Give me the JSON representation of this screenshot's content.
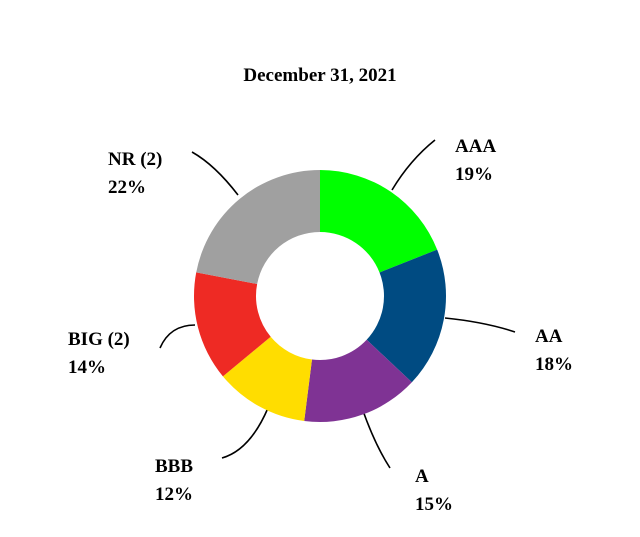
{
  "chart_data": {
    "type": "pie",
    "title": "December 31, 2021",
    "categories": [
      "AAA",
      "AA",
      "A",
      "BBB",
      "BIG (2)",
      "NR (2)"
    ],
    "values": [
      19,
      18,
      15,
      12,
      14,
      22
    ],
    "value_labels": [
      "19%",
      "18%",
      "15%",
      "12%",
      "14%",
      "22%"
    ],
    "colors": [
      "#00ff00",
      "#004b82",
      "#7f3394",
      "#ffdd00",
      "#ee2a24",
      "#a0a0a0"
    ]
  }
}
